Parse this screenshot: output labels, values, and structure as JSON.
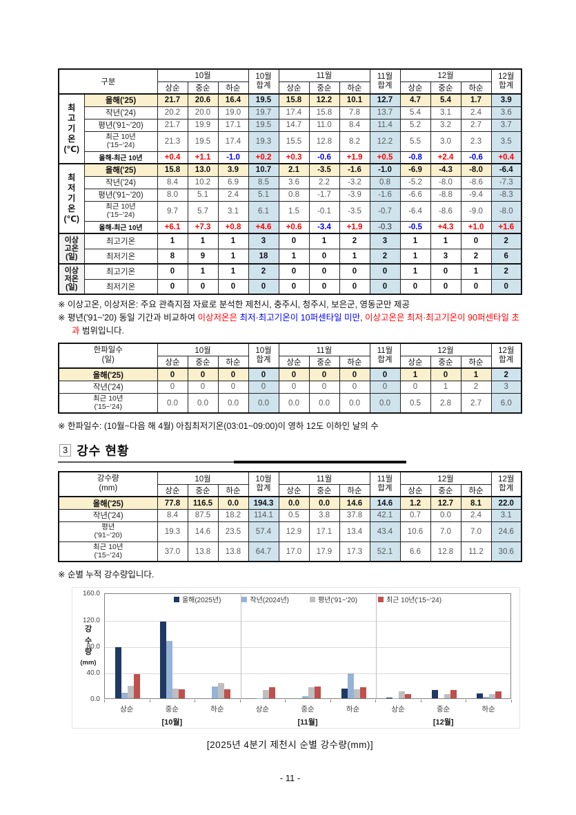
{
  "page": {
    "number": "- 11 -"
  },
  "colors": {
    "row_highlight": "#FBF0CD",
    "total_column": "#CFE3ED",
    "positive": "#FF0000",
    "negative": "#0000FF",
    "bar_this_year": "#1F3864",
    "bar_last_year": "#95B3D7",
    "bar_normal": "#BFBFBF",
    "bar_recent10": "#C0504D"
  },
  "header": {
    "months": [
      "10월",
      "11월",
      "12월"
    ],
    "periods": [
      "상순",
      "중순",
      "하순"
    ],
    "total": "합계"
  },
  "temp_table": {
    "corner_label": "구분",
    "sections": [
      {
        "group_lines": [
          "최",
          "고",
          "기",
          "온",
          "(℃)"
        ],
        "group_class": "",
        "rows": [
          {
            "label": "올해('25)",
            "style": "year",
            "values": [
              "21.7",
              "20.6",
              "16.4",
              "19.5",
              "15.8",
              "12.2",
              "10.1",
              "12.7",
              "4.7",
              "5.4",
              "1.7",
              "3.9"
            ]
          },
          {
            "label": "작년('24)",
            "style": "plain",
            "values": [
              "20.2",
              "20.0",
              "19.0",
              "19.7",
              "17.4",
              "15.8",
              "7.8",
              "13.7",
              "5.4",
              "3.1",
              "2.4",
              "3.6"
            ]
          },
          {
            "label": "평년('91~'20)",
            "style": "plain",
            "values": [
              "21.7",
              "19.9",
              "17.1",
              "19.5",
              "14.7",
              "11.0",
              "8.4",
              "11.4",
              "5.2",
              "3.2",
              "2.7",
              "3.7"
            ]
          },
          {
            "label": "최근 10년 ('15~'24)",
            "label_lines": [
              "최근 10년",
              "('15~'24)"
            ],
            "style": "plain2",
            "values": [
              "21.3",
              "19.5",
              "17.4",
              "19.3",
              "15.5",
              "12.8",
              "8.2",
              "12.2",
              "5.5",
              "3.0",
              "2.3",
              "3.5"
            ]
          },
          {
            "label": "올해-최근 10년",
            "style": "diff",
            "values": [
              "+0.4",
              "+1.1",
              "-1.0",
              "+0.2",
              "+0.3",
              "-0.6",
              "+1.9",
              "+0.5",
              "-0.8",
              "+2.4",
              "-0.6",
              "+0.4"
            ],
            "value_colors": [
              "r",
              "r",
              "b",
              "r",
              "r",
              "b",
              "r",
              "r",
              "b",
              "r",
              "b",
              "r"
            ]
          }
        ]
      },
      {
        "group_lines": [
          "최",
          "저",
          "기",
          "온",
          "(℃)"
        ],
        "group_class": "",
        "rows": [
          {
            "label": "올해('25)",
            "style": "year",
            "values": [
              "15.8",
              "13.0",
              "3.9",
              "10.7",
              "2.1",
              "-3.5",
              "-1.6",
              "-1.0",
              "-6.9",
              "-4.3",
              "-8.0",
              "-6.4"
            ]
          },
          {
            "label": "작년('24)",
            "style": "plain",
            "values": [
              "8.4",
              "10.2",
              "6.9",
              "8.5",
              "3.6",
              "2.2",
              "-3.2",
              "0.8",
              "-5.2",
              "-8.0",
              "-8.6",
              "-7.3"
            ]
          },
          {
            "label": "평년('91~'20)",
            "style": "plain",
            "values": [
              "8.0",
              "5.1",
              "2.4",
              "5.1",
              "0.8",
              "-1.7",
              "-3.9",
              "-1.6",
              "-6.6",
              "-8.8",
              "-9.4",
              "-8.3"
            ]
          },
          {
            "label": "최근 10년 ('15~'24)",
            "label_lines": [
              "최근 10년",
              "('15~'24)"
            ],
            "style": "plain2",
            "values": [
              "9.7",
              "5.7",
              "3.1",
              "6.1",
              "1.5",
              "-0.1",
              "-3.5",
              "-0.7",
              "-6.4",
              "-8.6",
              "-9.0",
              "-8.0"
            ]
          },
          {
            "label": "올해-최근 10년",
            "style": "diff",
            "values": [
              "+6.1",
              "+7.3",
              "+0.8",
              "+4.6",
              "+0.6",
              "-3.4",
              "+1.9",
              "-0.3",
              "-0.5",
              "+4.3",
              "+1.0",
              "+1.6"
            ],
            "value_colors": [
              "r",
              "r",
              "r",
              "r",
              "r",
              "b",
              "r",
              "k",
              "b",
              "r",
              "r",
              "r"
            ]
          }
        ]
      },
      {
        "group_lines": [
          "이상",
          "고온",
          "(일)"
        ],
        "group_class": "gray",
        "rows": [
          {
            "label": "최고기온",
            "style": "count",
            "values": [
              "1",
              "1",
              "1",
              "3",
              "0",
              "1",
              "2",
              "3",
              "1",
              "1",
              "0",
              "2"
            ]
          },
          {
            "label": "최저기온",
            "style": "count",
            "values": [
              "8",
              "9",
              "1",
              "18",
              "1",
              "0",
              "1",
              "2",
              "1",
              "3",
              "2",
              "6"
            ]
          }
        ]
      },
      {
        "group_lines": [
          "이상",
          "저온",
          "(일)"
        ],
        "group_class": "gray",
        "rows": [
          {
            "label": "최고기온",
            "style": "count",
            "values": [
              "0",
              "1",
              "1",
              "2",
              "0",
              "0",
              "0",
              "0",
              "1",
              "0",
              "1",
              "2"
            ]
          },
          {
            "label": "최저기온",
            "style": "count",
            "values": [
              "0",
              "0",
              "0",
              "0",
              "0",
              "0",
              "0",
              "0",
              "0",
              "0",
              "0",
              "0"
            ]
          }
        ]
      }
    ],
    "notes": [
      {
        "segments": [
          {
            "t": "※ 이상고온, 이상저온: 주요 관측지점 자료로 분석한 제천시, 충주시, 청주시, 보은군, 영동군만 제공",
            "c": "k"
          }
        ]
      },
      {
        "segments": [
          {
            "t": "※ 평년('91~'20) 동일 기간과 비교하여 ",
            "c": "k"
          },
          {
            "t": "이상저온은",
            "c": "r"
          },
          {
            "t": " ",
            "c": "k"
          },
          {
            "t": "최저·최고기온이 10퍼센타일 미만",
            "c": "b"
          },
          {
            "t": ", ",
            "c": "k"
          },
          {
            "t": "이상고온은",
            "c": "r"
          },
          {
            "t": " ",
            "c": "k"
          },
          {
            "t": "최저·최고기온이 90퍼센타일 초과",
            "c": "r"
          },
          {
            "t": " 범위입니다.",
            "c": "k"
          }
        ]
      }
    ]
  },
  "cold_table": {
    "corner_lines": [
      "한파일수",
      "(일)"
    ],
    "rows": [
      {
        "label": "올해('25)",
        "style": "year",
        "values": [
          "0",
          "0",
          "0",
          "0",
          "0",
          "0",
          "0",
          "0",
          "1",
          "0",
          "1",
          "2"
        ]
      },
      {
        "label": "작년('24)",
        "style": "plain",
        "values": [
          "0",
          "0",
          "0",
          "0",
          "0",
          "0",
          "0",
          "0",
          "0",
          "1",
          "2",
          "3"
        ]
      },
      {
        "label": "최근 10년 ('15~'24)",
        "label_lines": [
          "최근 10년",
          "('15~'24)"
        ],
        "style": "plain2",
        "values": [
          "0.0",
          "0.0",
          "0.0",
          "0.0",
          "0.0",
          "0.0",
          "0.0",
          "0.0",
          "0.5",
          "2.8",
          "2.7",
          "6.0"
        ]
      }
    ],
    "note": "※ 한파일수: (10월~다음 해 4월) 아침최저기온(03:01~09:00)이 영하 12도 이하인 날의 수"
  },
  "section3": {
    "num": "3",
    "title": "강수 현황"
  },
  "rain_table": {
    "corner_lines": [
      "강수량",
      "(mm)"
    ],
    "rows": [
      {
        "label": "올해('25)",
        "style": "year",
        "values": [
          "77.8",
          "116.5",
          "0.0",
          "194.3",
          "0.0",
          "0.0",
          "14.6",
          "14.6",
          "1.2",
          "12.7",
          "8.1",
          "22.0"
        ]
      },
      {
        "label": "작년('24)",
        "style": "plain",
        "values": [
          "8.4",
          "87.5",
          "18.2",
          "114.1",
          "0.5",
          "3.8",
          "37.8",
          "42.1",
          "0.7",
          "0.0",
          "2.4",
          "3.1"
        ]
      },
      {
        "label": "평년 ('91~'20)",
        "label_lines": [
          "평년",
          "('91~'20)"
        ],
        "style": "plain2",
        "values": [
          "19.3",
          "14.6",
          "23.5",
          "57.4",
          "12.9",
          "17.1",
          "13.4",
          "43.4",
          "10.6",
          "7.0",
          "7.0",
          "24.6"
        ]
      },
      {
        "label": "최근 10년 ('15~'24)",
        "label_lines": [
          "최근 10년",
          "('15~'24)"
        ],
        "style": "plain2",
        "values": [
          "37.0",
          "13.8",
          "13.8",
          "64.7",
          "17.0",
          "17.9",
          "17.3",
          "52.1",
          "6.6",
          "12.8",
          "11.2",
          "30.6"
        ]
      }
    ],
    "note": "※ 순별 누적 강수량입니다."
  },
  "chart_data": {
    "type": "bar",
    "title": "",
    "ylabel_lines": [
      "강",
      "수",
      "량"
    ],
    "ylabel_unit": "(mm)",
    "ylim": [
      0,
      160
    ],
    "yticks": [
      {
        "v": 0,
        "label": "0.0"
      },
      {
        "v": 40,
        "label": "40.0"
      },
      {
        "v": 80,
        "label": "80.0"
      },
      {
        "v": 120,
        "label": "120.0"
      },
      {
        "v": 160,
        "label": "160.0"
      }
    ],
    "categories": [
      "상순",
      "중순",
      "하순",
      "상순",
      "중순",
      "하순",
      "상순",
      "중순",
      "하순"
    ],
    "month_labels": [
      "[10월]",
      "[11월]",
      "[12월]"
    ],
    "legend_position": "top-center",
    "grid": true,
    "series": [
      {
        "name": "올해(2025년)",
        "color": "#1F3864",
        "values": [
          77.8,
          116.5,
          0.0,
          0.0,
          0.0,
          14.6,
          1.2,
          12.7,
          8.1
        ]
      },
      {
        "name": "작년(2024년)",
        "color": "#95B3D7",
        "values": [
          8.4,
          87.5,
          18.2,
          0.5,
          3.8,
          37.8,
          0.7,
          0.0,
          2.4
        ]
      },
      {
        "name": "평년('91~'20)",
        "color": "#BFBFBF",
        "values": [
          19.3,
          14.6,
          23.5,
          12.9,
          17.1,
          13.4,
          10.6,
          7.0,
          7.0
        ]
      },
      {
        "name": "최근 10년('15~'24)",
        "color": "#C0504D",
        "values": [
          37.0,
          13.8,
          13.8,
          17.0,
          17.9,
          17.3,
          6.6,
          12.8,
          11.2
        ]
      }
    ],
    "caption": "[2025년 4분기 제천시 순별 강수량(mm)]"
  }
}
